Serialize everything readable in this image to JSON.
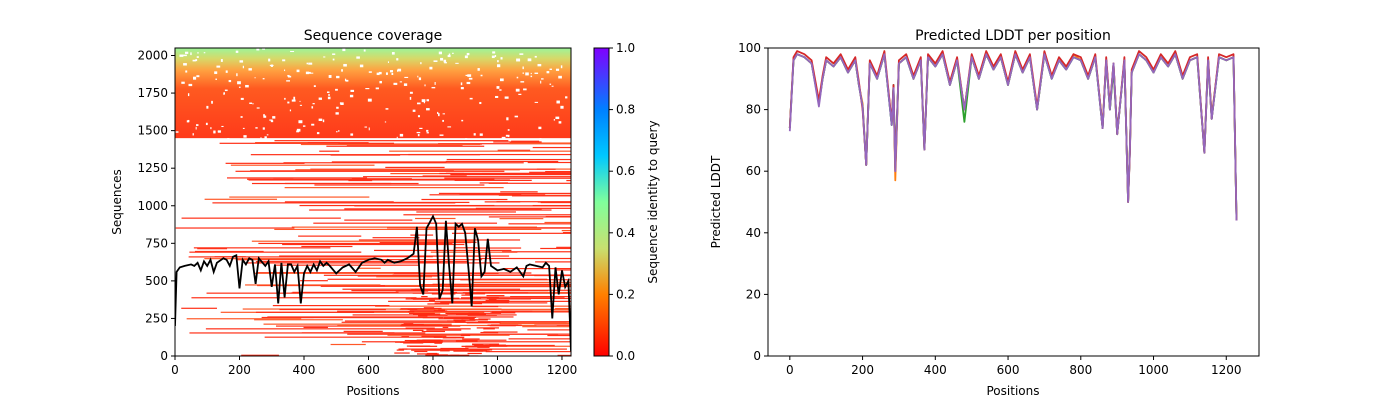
{
  "chart_data": [
    {
      "type": "heatmap",
      "title": "Sequence coverage",
      "xlabel": "Positions",
      "ylabel": "Sequences",
      "xlim": [
        0,
        1228
      ],
      "ylim": [
        0,
        2050
      ],
      "xticks": [
        "0",
        "200",
        "400",
        "600",
        "800",
        "1000",
        "1200"
      ],
      "yticks": [
        "0",
        "250",
        "500",
        "750",
        "1000",
        "1250",
        "1500",
        "1750",
        "2000"
      ],
      "colorbar": {
        "label": "Sequence identity to query",
        "range": [
          0,
          1
        ],
        "ticks": [
          "0.0",
          "0.2",
          "0.4",
          "0.6",
          "0.8",
          "1.0"
        ],
        "colormap": [
          "#ff0000",
          "#ff8000",
          "#c8e070",
          "#80ff9c",
          "#00c8ff",
          "#0080ff",
          "#8000ff"
        ]
      },
      "coverage_line": {
        "color": "#000000",
        "x": [
          0,
          5,
          15,
          30,
          50,
          60,
          70,
          80,
          90,
          100,
          110,
          120,
          130,
          150,
          160,
          170,
          180,
          190,
          200,
          210,
          220,
          230,
          240,
          250,
          260,
          280,
          290,
          300,
          310,
          320,
          330,
          340,
          350,
          360,
          370,
          380,
          390,
          400,
          410,
          420,
          430,
          440,
          450,
          460,
          470,
          480,
          500,
          520,
          540,
          560,
          580,
          600,
          620,
          640,
          650,
          660,
          680,
          700,
          720,
          740,
          750,
          760,
          770,
          780,
          790,
          800,
          810,
          820,
          830,
          840,
          850,
          860,
          870,
          880,
          890,
          900,
          910,
          920,
          930,
          940,
          950,
          960,
          970,
          980,
          1000,
          1020,
          1040,
          1060,
          1080,
          1090,
          1100,
          1120,
          1140,
          1150,
          1160,
          1170,
          1180,
          1190,
          1200,
          1210,
          1220,
          1228
        ],
        "y": [
          200,
          560,
          590,
          600,
          610,
          600,
          620,
          570,
          630,
          600,
          640,
          560,
          620,
          650,
          640,
          600,
          660,
          670,
          450,
          640,
          610,
          650,
          640,
          480,
          650,
          600,
          630,
          460,
          610,
          350,
          620,
          390,
          610,
          610,
          560,
          600,
          350,
          550,
          600,
          560,
          610,
          570,
          630,
          600,
          620,
          600,
          550,
          590,
          610,
          560,
          620,
          640,
          650,
          640,
          620,
          640,
          620,
          630,
          650,
          680,
          860,
          470,
          410,
          850,
          890,
          930,
          880,
          380,
          440,
          900,
          600,
          350,
          880,
          860,
          880,
          820,
          580,
          330,
          850,
          770,
          530,
          560,
          780,
          600,
          570,
          580,
          560,
          590,
          530,
          600,
          610,
          600,
          590,
          620,
          600,
          250,
          590,
          410,
          570,
          460,
          500,
          30
        ]
      }
    },
    {
      "type": "line",
      "title": "Predicted LDDT per position",
      "xlabel": "Positions",
      "ylabel": "Predicted LDDT",
      "xlim": [
        -60,
        1290
      ],
      "ylim": [
        0,
        100
      ],
      "xticks": [
        "0",
        "200",
        "400",
        "600",
        "800",
        "1000",
        "1200"
      ],
      "yticks": [
        "0",
        "20",
        "40",
        "60",
        "80",
        "100"
      ],
      "x": [
        0,
        10,
        20,
        40,
        60,
        80,
        90,
        100,
        120,
        140,
        160,
        180,
        190,
        200,
        210,
        220,
        240,
        260,
        280,
        285,
        290,
        300,
        320,
        340,
        360,
        370,
        380,
        400,
        420,
        440,
        460,
        480,
        500,
        520,
        540,
        560,
        580,
        600,
        620,
        640,
        660,
        680,
        700,
        720,
        740,
        760,
        780,
        800,
        820,
        840,
        860,
        870,
        880,
        890,
        900,
        920,
        930,
        935,
        940,
        960,
        980,
        1000,
        1020,
        1040,
        1060,
        1080,
        1100,
        1120,
        1140,
        1150,
        1160,
        1180,
        1200,
        1220,
        1228
      ],
      "series": [
        {
          "color": "#1f77b4",
          "values": [
            74,
            96,
            98,
            97,
            95,
            82,
            90,
            96,
            94,
            97,
            92,
            96,
            88,
            81,
            62,
            95,
            90,
            98,
            75,
            88,
            60,
            95,
            97,
            90,
            96,
            67,
            97,
            94,
            98,
            88,
            96,
            80,
            97,
            90,
            98,
            93,
            97,
            88,
            98,
            92,
            97,
            80,
            98,
            90,
            96,
            93,
            97,
            96,
            90,
            97,
            74,
            96,
            80,
            95,
            72,
            96,
            50,
            67,
            92,
            98,
            96,
            92,
            97,
            94,
            98,
            90,
            96,
            97,
            66,
            96,
            77,
            97,
            96,
            97,
            44
          ]
        },
        {
          "color": "#ff7f0e",
          "values": [
            74,
            96,
            98,
            97,
            95,
            82,
            90,
            96,
            94,
            97,
            92,
            96,
            88,
            82,
            62,
            95,
            90,
            98,
            76,
            87,
            57,
            95,
            97,
            90,
            96,
            67,
            97,
            94,
            98,
            88,
            96,
            80,
            97,
            90,
            98,
            93,
            97,
            88,
            98,
            92,
            97,
            80,
            98,
            91,
            96,
            93,
            98,
            96,
            90,
            97,
            75,
            96,
            80,
            95,
            72,
            96,
            50,
            68,
            92,
            98,
            96,
            92,
            97,
            94,
            98,
            90,
            96,
            97,
            66,
            96,
            78,
            97,
            96,
            97,
            44
          ]
        },
        {
          "color": "#2ca02c",
          "values": [
            74,
            96,
            98,
            97,
            95,
            82,
            90,
            96,
            94,
            97,
            92,
            96,
            88,
            81,
            62,
            95,
            90,
            98,
            75,
            88,
            61,
            95,
            97,
            90,
            96,
            67,
            97,
            94,
            98,
            88,
            96,
            76,
            97,
            90,
            98,
            93,
            97,
            88,
            98,
            92,
            97,
            80,
            98,
            90,
            96,
            93,
            97,
            96,
            90,
            97,
            74,
            96,
            80,
            93,
            72,
            96,
            50,
            67,
            92,
            98,
            96,
            92,
            97,
            94,
            98,
            90,
            96,
            97,
            66,
            96,
            77,
            97,
            96,
            97,
            44
          ]
        },
        {
          "color": "#d62728",
          "values": [
            74,
            97,
            99,
            98,
            96,
            83,
            91,
            97,
            95,
            98,
            93,
            97,
            89,
            80,
            62,
            96,
            91,
            99,
            76,
            88,
            60,
            96,
            98,
            91,
            97,
            67,
            98,
            95,
            99,
            89,
            97,
            80,
            98,
            91,
            99,
            94,
            98,
            89,
            99,
            93,
            98,
            81,
            99,
            91,
            97,
            94,
            98,
            97,
            91,
            98,
            74,
            97,
            81,
            95,
            72,
            97,
            50,
            66,
            93,
            99,
            97,
            93,
            98,
            95,
            99,
            91,
            97,
            98,
            66,
            97,
            77,
            98,
            97,
            98,
            44
          ]
        },
        {
          "color": "#9467bd",
          "values": [
            73,
            96,
            98,
            97,
            95,
            81,
            90,
            96,
            94,
            97,
            92,
            96,
            88,
            81,
            62,
            95,
            90,
            98,
            75,
            87,
            60,
            95,
            97,
            90,
            96,
            67,
            97,
            94,
            98,
            88,
            96,
            80,
            97,
            90,
            98,
            93,
            97,
            88,
            98,
            92,
            97,
            80,
            98,
            90,
            96,
            93,
            97,
            96,
            90,
            97,
            74,
            96,
            80,
            95,
            72,
            96,
            50,
            67,
            92,
            98,
            96,
            92,
            97,
            94,
            98,
            90,
            96,
            97,
            66,
            96,
            77,
            97,
            96,
            97,
            44
          ]
        }
      ]
    }
  ]
}
